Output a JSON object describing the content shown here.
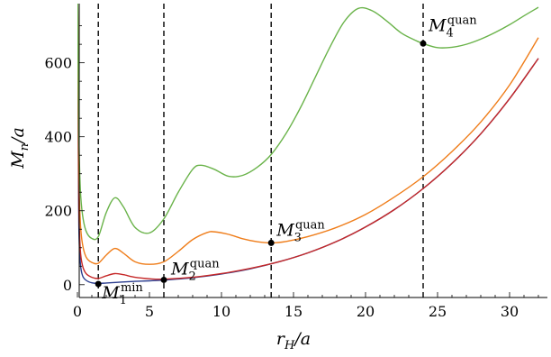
{
  "chart_data": {
    "type": "line",
    "xlabel": {
      "main": "r",
      "sub": "H",
      "rest": "/a"
    },
    "ylabel": {
      "main": "M",
      "sub": "n",
      "rest": "/a"
    },
    "xlim": [
      0,
      32.5
    ],
    "ylim": [
      -20,
      760
    ],
    "x_ticks": [
      0,
      5,
      10,
      15,
      20,
      25,
      30
    ],
    "y_ticks": [
      0,
      200,
      400,
      600
    ],
    "vertical_dashed_lines": [
      1.45,
      6.0,
      13.45,
      24.0
    ],
    "series": [
      {
        "color": "#2b3d8f",
        "points": [
          [
            0.02,
            760
          ],
          [
            0.05,
            450
          ],
          [
            0.1,
            160
          ],
          [
            0.2,
            60
          ],
          [
            0.35,
            25
          ],
          [
            0.6,
            12
          ],
          [
            1.0,
            5
          ],
          [
            1.45,
            3.5
          ],
          [
            2.0,
            4.5
          ],
          [
            3,
            7
          ],
          [
            4,
            9
          ],
          [
            5,
            10.5
          ],
          [
            6,
            12.5
          ],
          [
            8,
            19
          ],
          [
            10,
            29
          ],
          [
            12,
            43
          ],
          [
            14,
            62
          ],
          [
            16,
            86
          ],
          [
            18,
            117
          ],
          [
            20,
            156
          ],
          [
            22,
            203
          ],
          [
            24,
            260
          ],
          [
            26,
            328
          ],
          [
            28,
            408
          ],
          [
            30,
            503
          ],
          [
            32,
            612
          ]
        ]
      },
      {
        "color": "#c62828",
        "points": [
          [
            0.02,
            760
          ],
          [
            0.05,
            500
          ],
          [
            0.1,
            210
          ],
          [
            0.2,
            95
          ],
          [
            0.35,
            52
          ],
          [
            0.6,
            30
          ],
          [
            1.0,
            20
          ],
          [
            1.45,
            17
          ],
          [
            2.0,
            24
          ],
          [
            2.6,
            30
          ],
          [
            3.2,
            27
          ],
          [
            4.0,
            20
          ],
          [
            5.0,
            16
          ],
          [
            6.0,
            15
          ],
          [
            8,
            20
          ],
          [
            10,
            30
          ],
          [
            12,
            44
          ],
          [
            14,
            62
          ],
          [
            16,
            86
          ],
          [
            18,
            117
          ],
          [
            20,
            156
          ],
          [
            22,
            203
          ],
          [
            24,
            260
          ],
          [
            26,
            328
          ],
          [
            28,
            408
          ],
          [
            30,
            503
          ],
          [
            32,
            612
          ]
        ]
      },
      {
        "color": "#ef7d1a",
        "points": [
          [
            0.02,
            760
          ],
          [
            0.05,
            560
          ],
          [
            0.1,
            300
          ],
          [
            0.2,
            170
          ],
          [
            0.35,
            110
          ],
          [
            0.6,
            75
          ],
          [
            1.0,
            60
          ],
          [
            1.45,
            58
          ],
          [
            2.0,
            80
          ],
          [
            2.6,
            98
          ],
          [
            3.2,
            85
          ],
          [
            4.0,
            62
          ],
          [
            5.0,
            55
          ],
          [
            6.0,
            62
          ],
          [
            7.0,
            90
          ],
          [
            8.0,
            122
          ],
          [
            9.0,
            141
          ],
          [
            9.5,
            143
          ],
          [
            10.5,
            136
          ],
          [
            11.5,
            124
          ],
          [
            12.5,
            116
          ],
          [
            13.45,
            113
          ],
          [
            14.5,
            117
          ],
          [
            16,
            130
          ],
          [
            18,
            155
          ],
          [
            20,
            190
          ],
          [
            22,
            237
          ],
          [
            24,
            292
          ],
          [
            26,
            360
          ],
          [
            28,
            440
          ],
          [
            30,
            540
          ],
          [
            32,
            668
          ]
        ]
      },
      {
        "color": "#6ab34a",
        "points": [
          [
            0.02,
            760
          ],
          [
            0.05,
            600
          ],
          [
            0.1,
            400
          ],
          [
            0.2,
            260
          ],
          [
            0.35,
            190
          ],
          [
            0.6,
            145
          ],
          [
            1.0,
            125
          ],
          [
            1.45,
            130
          ],
          [
            2.0,
            195
          ],
          [
            2.6,
            235
          ],
          [
            3.2,
            210
          ],
          [
            4.0,
            155
          ],
          [
            5.0,
            140
          ],
          [
            6.0,
            178
          ],
          [
            7.0,
            250
          ],
          [
            8.0,
            312
          ],
          [
            8.6,
            323
          ],
          [
            9.5,
            312
          ],
          [
            10.5,
            293
          ],
          [
            11.5,
            296
          ],
          [
            12.5,
            318
          ],
          [
            13.45,
            352
          ],
          [
            14.5,
            410
          ],
          [
            15.5,
            480
          ],
          [
            16.5,
            560
          ],
          [
            17.5,
            640
          ],
          [
            18.5,
            710
          ],
          [
            19.5,
            747
          ],
          [
            20.5,
            740
          ],
          [
            21.5,
            712
          ],
          [
            22.5,
            680
          ],
          [
            23.5,
            660
          ],
          [
            24.0,
            652
          ],
          [
            25.0,
            641
          ],
          [
            26.0,
            642
          ],
          [
            27.0,
            650
          ],
          [
            28.0,
            664
          ],
          [
            29.0,
            682
          ],
          [
            30.0,
            703
          ],
          [
            31.0,
            727
          ],
          [
            32.0,
            750
          ]
        ]
      }
    ],
    "annotations": [
      {
        "x": 1.45,
        "y": 2,
        "base": "M",
        "sub": "1",
        "sup": "min"
      },
      {
        "x": 6.0,
        "y": 13,
        "base": "M",
        "sub": "2",
        "sup": "quan"
      },
      {
        "x": 13.45,
        "y": 113,
        "base": "M",
        "sub": "3",
        "sup": "quan"
      },
      {
        "x": 24.0,
        "y": 652,
        "base": "M",
        "sub": "4",
        "sup": "quan"
      }
    ],
    "grid": false
  }
}
